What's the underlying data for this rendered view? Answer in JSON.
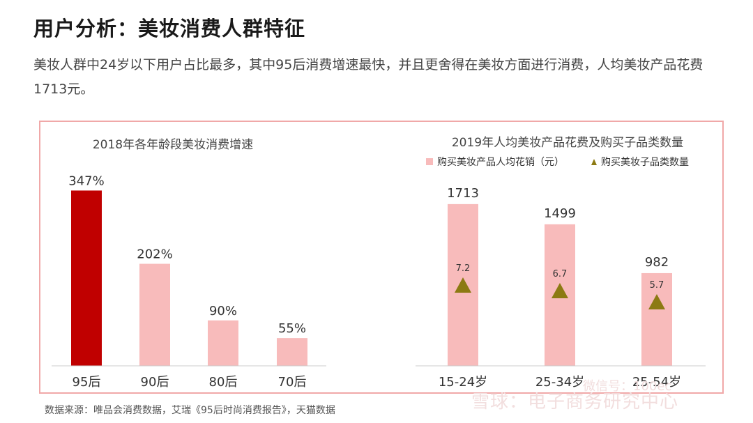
{
  "header": {
    "title": "用户分析：美妆消费人群特征",
    "intro": "美妆人群中24岁以下用户占比最多，其中95后消费增速最快，并且更舍得在美妆方面进行消费，人均美妆产品花费1713元。"
  },
  "chart_data": [
    {
      "type": "bar",
      "title": "2018年各年龄段美妆消费增速",
      "categories": [
        "95后",
        "90后",
        "80后",
        "70后"
      ],
      "values": [
        347,
        202,
        90,
        55
      ],
      "value_labels": [
        "347%",
        "202%",
        "90%",
        "55%"
      ],
      "unit": "%",
      "ylim": [
        0,
        400
      ],
      "colors": [
        "#c00000",
        "#f8bbbb",
        "#f8bbbb",
        "#f8bbbb"
      ],
      "grid": false
    },
    {
      "type": "bar",
      "title": "2019年人均美妆产品花费及购买子品类数量",
      "categories": [
        "15-24岁",
        "25-34岁",
        "25-54岁"
      ],
      "series": [
        {
          "name": "购买美妆产品人均花销（元）",
          "kind": "bar",
          "values": [
            1713,
            1499,
            982
          ],
          "value_labels": [
            "1713",
            "1499",
            "982"
          ],
          "color": "#f8bbbb"
        },
        {
          "name": "购买美妆子品类数量",
          "kind": "marker-triangle",
          "values": [
            7.2,
            6.7,
            5.7
          ],
          "value_labels": [
            "7.2",
            "6.7",
            "5.7"
          ],
          "color": "#8c7a12"
        }
      ],
      "ylim": [
        0,
        2000
      ],
      "legend": "top",
      "grid": false
    }
  ],
  "footer": {
    "source": "数据来源：唯品会消费数据，艾瑞《95后时尚消费报告》，天猫数据",
    "watermark": "雪球：电子商务研究中心",
    "watermark_icon": "微信号：100ec"
  },
  "colors": {
    "accent": "#c00000",
    "bar_light": "#f8bbbb",
    "frame": "#f0a8a8",
    "marker": "#8c7a12"
  }
}
